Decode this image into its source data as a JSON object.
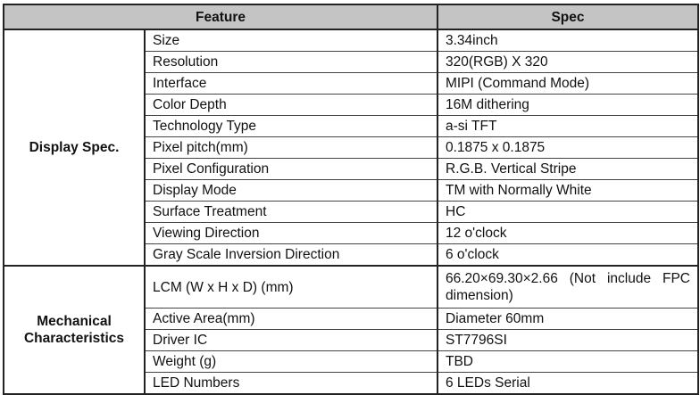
{
  "header": {
    "feature": "Feature",
    "spec": "Spec"
  },
  "groups": [
    {
      "label": "Display Spec.",
      "rows": [
        {
          "feature": "Size",
          "spec": "3.34inch"
        },
        {
          "feature": "Resolution",
          "spec": "320(RGB) X 320"
        },
        {
          "feature": "Interface",
          "spec": "MIPI (Command Mode)"
        },
        {
          "feature": "Color Depth",
          "spec": "16M dithering"
        },
        {
          "feature": "Technology Type",
          "spec": "a-si TFT"
        },
        {
          "feature": "Pixel pitch(mm)",
          "spec": "0.1875 x 0.1875"
        },
        {
          "feature": "Pixel Configuration",
          "spec": "R.G.B. Vertical Stripe"
        },
        {
          "feature": "Display Mode",
          "spec": "TM with Normally White"
        },
        {
          "feature": "Surface Treatment",
          "spec": "HC"
        },
        {
          "feature": "Viewing Direction",
          "spec": "12 o'clock"
        },
        {
          "feature": "Gray Scale Inversion Direction",
          "spec": "6 o'clock"
        }
      ]
    },
    {
      "label": "Mechanical Characteristics",
      "rows": [
        {
          "feature": "LCM (W x H x D) (mm)",
          "spec": "66.20×69.30×2.66 (Not include FPC dimension)"
        },
        {
          "feature": "Active Area(mm)",
          "spec": "Diameter 60mm"
        },
        {
          "feature": "Driver IC",
          "spec": "ST7796SI"
        },
        {
          "feature": "Weight (g)",
          "spec": "TBD"
        },
        {
          "feature": "LED Numbers",
          "spec": "6 LEDs Serial"
        }
      ]
    }
  ]
}
